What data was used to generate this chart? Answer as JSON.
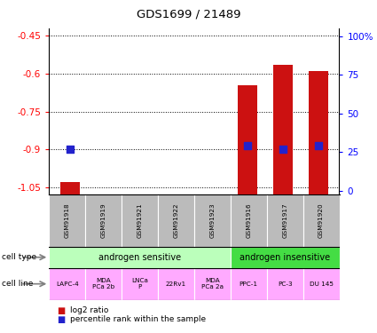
{
  "title": "GDS1699 / 21489",
  "samples": [
    "GSM91918",
    "GSM91919",
    "GSM91921",
    "GSM91922",
    "GSM91923",
    "GSM91916",
    "GSM91917",
    "GSM91920"
  ],
  "log2_ratio": [
    -1.03,
    null,
    null,
    null,
    null,
    -0.645,
    -0.565,
    -0.59
  ],
  "percentile_rank": [
    27,
    null,
    null,
    null,
    null,
    29,
    27,
    29
  ],
  "ylim_left": [
    -1.08,
    -0.42
  ],
  "ylim_right": [
    -2.8,
    105
  ],
  "yticks_left": [
    -1.05,
    -0.9,
    -0.75,
    -0.6,
    -0.45
  ],
  "yticks_right": [
    0,
    25,
    50,
    75,
    100
  ],
  "ytick_labels_right": [
    "0",
    "25",
    "50",
    "75",
    "100%"
  ],
  "cell_type_groups": [
    {
      "label": "androgen sensitive",
      "start": 0,
      "end": 5,
      "color": "#bbffbb"
    },
    {
      "label": "androgen insensitive",
      "start": 5,
      "end": 8,
      "color": "#44dd44"
    }
  ],
  "cell_lines": [
    "LAPC-4",
    "MDA\nPCa 2b",
    "LNCa\nP",
    "22Rv1",
    "MDA\nPCa 2a",
    "PPC-1",
    "PC-3",
    "DU 145"
  ],
  "cell_line_color": "#ffaaff",
  "sample_label_color": "#bbbbbb",
  "bar_color": "#cc1111",
  "dot_color": "#2222cc",
  "bar_width": 0.55,
  "dot_size": 30,
  "legend_bar_label": "log2 ratio",
  "legend_dot_label": "percentile rank within the sample"
}
